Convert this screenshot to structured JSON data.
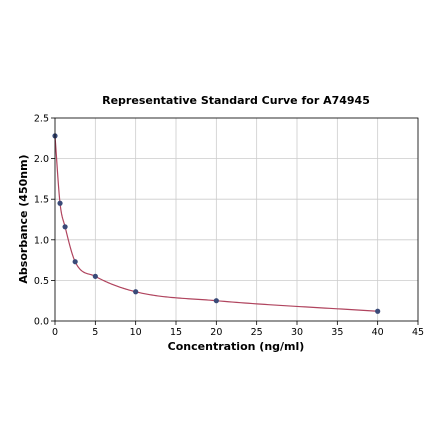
{
  "chart_data": {
    "type": "scatter",
    "title": "Representative Standard Curve for A74945",
    "xlabel": "Concentration (ng/ml)",
    "ylabel": "Absorbance (450nm)",
    "xlim": [
      0,
      45
    ],
    "ylim": [
      0,
      2.5
    ],
    "x_ticks": [
      "0",
      "5",
      "10",
      "15",
      "20",
      "25",
      "30",
      "35",
      "40",
      "45"
    ],
    "y_ticks": [
      "0.0",
      "0.5",
      "1.0",
      "1.5",
      "2.0",
      "2.5"
    ],
    "grid": true,
    "series": [
      {
        "points": [
          {
            "x": 0,
            "y": 2.28
          },
          {
            "x": 0.625,
            "y": 1.45
          },
          {
            "x": 1.25,
            "y": 1.16
          },
          {
            "x": 2.5,
            "y": 0.73
          },
          {
            "x": 5,
            "y": 0.55
          },
          {
            "x": 10,
            "y": 0.36
          },
          {
            "x": 20,
            "y": 0.25
          },
          {
            "x": 40,
            "y": 0.12
          }
        ],
        "fit_curve": true
      }
    ],
    "colors": {
      "point": "#3a4a78",
      "curve": "#b0445e",
      "grid": "#cccccc",
      "axis": "#000000"
    }
  }
}
